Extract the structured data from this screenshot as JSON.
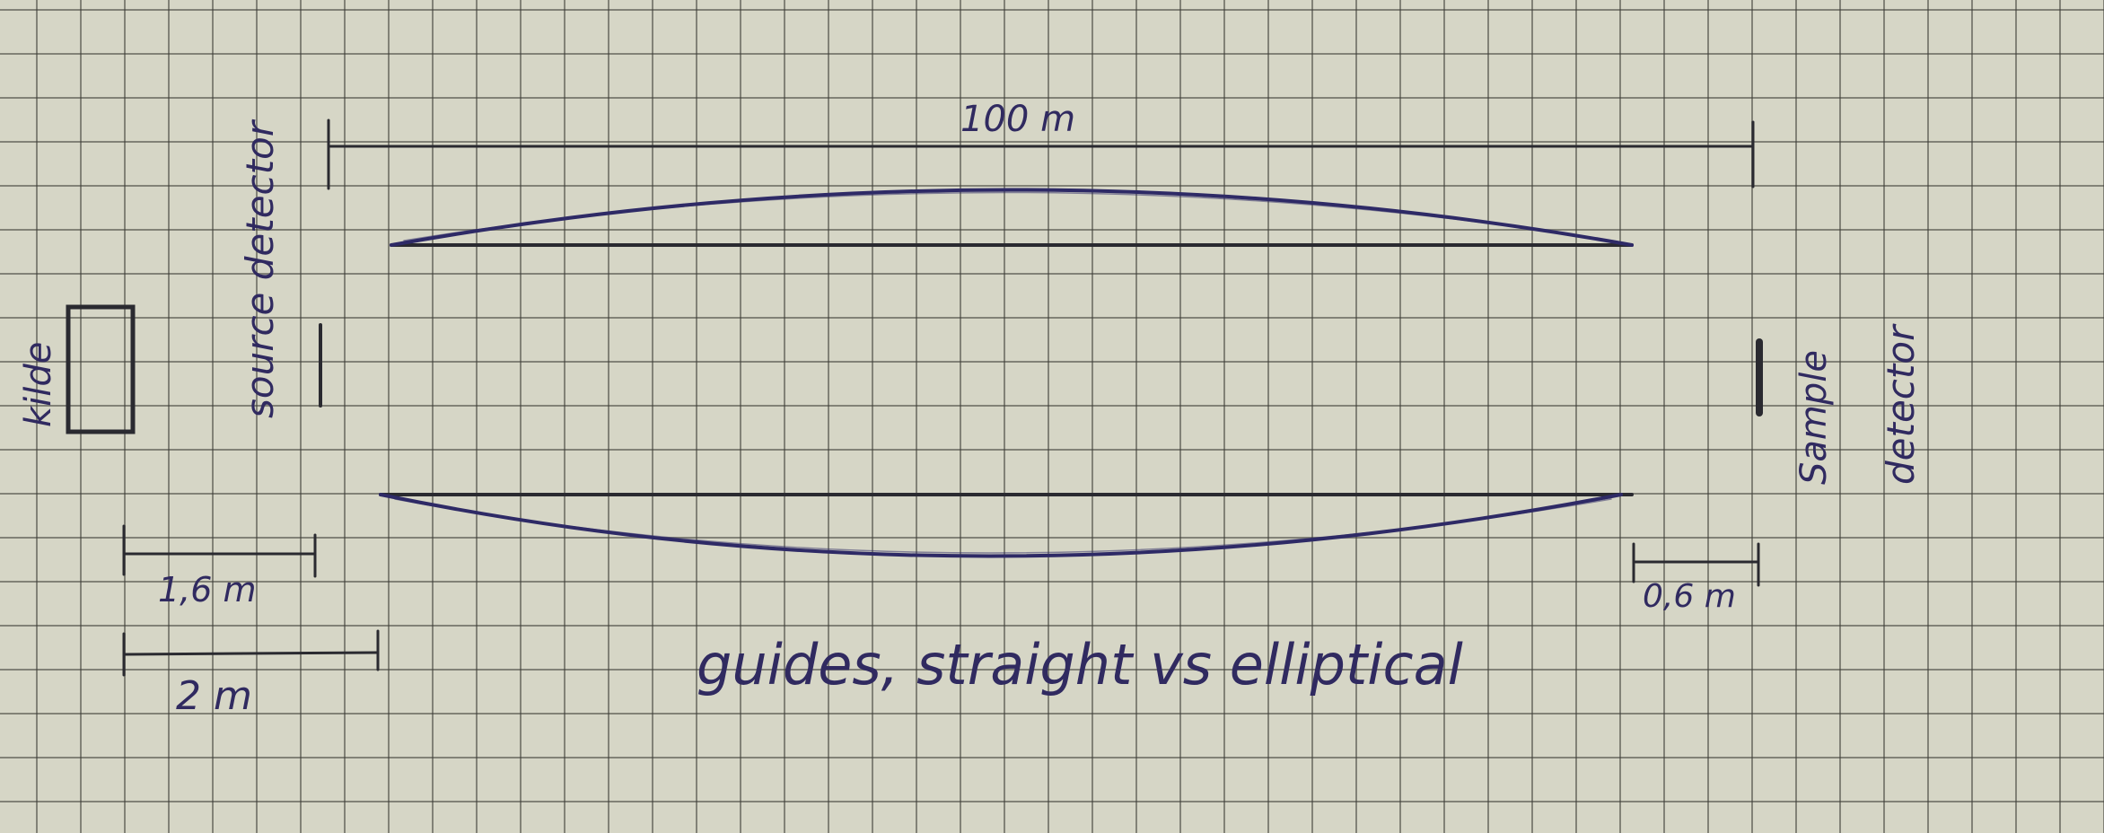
{
  "colors": {
    "paper": "#d6d6c6",
    "grid": "#3c3c37",
    "ink_dark": "#2a2a30",
    "ink_blue": "#2e2a66"
  },
  "labels": {
    "source_box": "kilde",
    "source_detector": "source detector",
    "sample_detector_line1": "Sample",
    "sample_detector_line2": "detector",
    "guide_length": "100 m",
    "gap_1": "1,6 m",
    "gap_2": "2 m",
    "sample_gap": "0,6 m",
    "caption": "guides, straight vs elliptical"
  }
}
